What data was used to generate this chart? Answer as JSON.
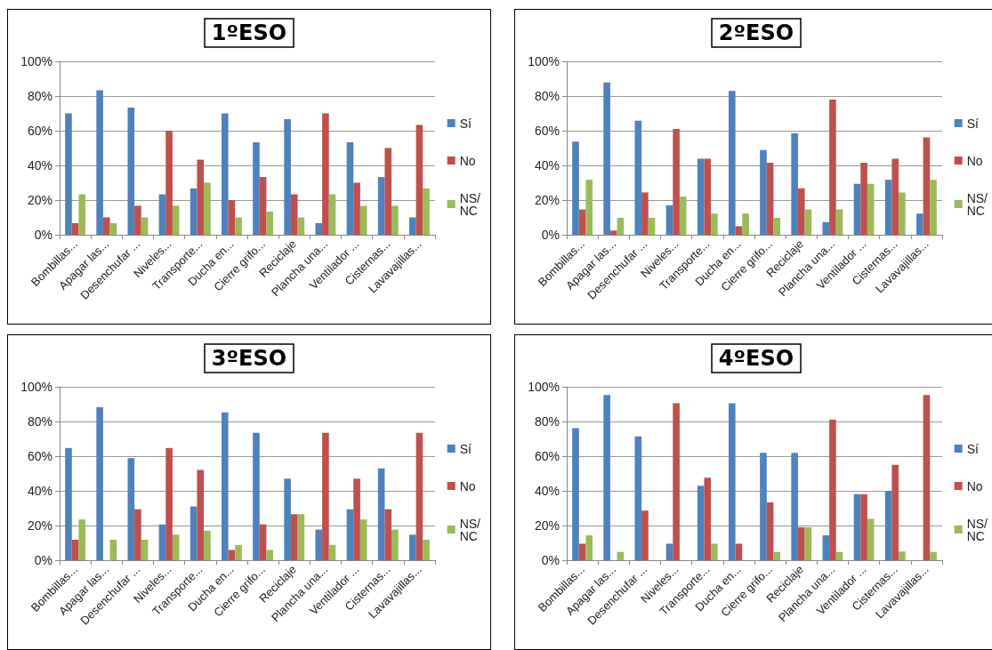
{
  "chart_data": [
    {
      "type": "bar",
      "title": "1ºESO",
      "categories": [
        "Bombillas...",
        "Apagar las...",
        "Desenchufar ...",
        "Niveles...",
        "Transporte...",
        "Ducha en...",
        "Cierre grifo...",
        "Reciclaje",
        "Plancha una...",
        "Ventilador ...",
        "Cisternas...",
        "Lavavajillas..."
      ],
      "series": [
        {
          "name": "Sí",
          "color": "#4f81bd",
          "values": [
            70,
            83.3,
            73.3,
            23.3,
            26.7,
            70,
            53.3,
            66.7,
            6.7,
            53.3,
            33.3,
            10
          ]
        },
        {
          "name": "No",
          "color": "#c0504d",
          "values": [
            6.7,
            10,
            16.7,
            60,
            43.3,
            20,
            33.3,
            23.3,
            70,
            30,
            50,
            63.3
          ]
        },
        {
          "name": "NS/NC",
          "color": "#9bbb59",
          "values": [
            23.3,
            6.7,
            10,
            16.7,
            30,
            10,
            13.3,
            10,
            23.3,
            16.7,
            16.7,
            26.7
          ]
        }
      ],
      "ylim": [
        0,
        100
      ],
      "yticks": [
        {
          "value": 0,
          "label": "0%"
        },
        {
          "value": 20,
          "label": "20%"
        },
        {
          "value": 40,
          "label": "40%"
        },
        {
          "value": 60,
          "label": "60%"
        },
        {
          "value": 80,
          "label": "80%"
        },
        {
          "value": 100,
          "label": "100%"
        }
      ],
      "grid": "y",
      "legend": "right"
    },
    {
      "type": "bar",
      "title": "2ºESO",
      "categories": [
        "Bombillas...",
        "Apagar las...",
        "Desenchufar ...",
        "Niveles...",
        "Transporte...",
        "Ducha en...",
        "Cierre grifo...",
        "Reciclaje",
        "Plancha una...",
        "Ventilador ...",
        "Cisternas...",
        "Lavavajillas..."
      ],
      "series": [
        {
          "name": "Sí",
          "color": "#4f81bd",
          "values": [
            53.7,
            87.8,
            65.8,
            17,
            43.9,
            82.9,
            48.8,
            58.5,
            7.3,
            29.3,
            31.7,
            12.2
          ]
        },
        {
          "name": "No",
          "color": "#c0504d",
          "values": [
            14.6,
            2.4,
            24.4,
            61,
            43.9,
            4.9,
            41.5,
            26.8,
            78,
            41.5,
            43.9,
            56.1
          ]
        },
        {
          "name": "NS/NC",
          "color": "#9bbb59",
          "values": [
            31.7,
            9.8,
            9.8,
            22,
            12.2,
            12.2,
            9.8,
            14.6,
            14.6,
            29.3,
            24.4,
            31.7
          ]
        }
      ],
      "ylim": [
        0,
        100
      ],
      "yticks": [
        {
          "value": 0,
          "label": "0%"
        },
        {
          "value": 20,
          "label": "20%"
        },
        {
          "value": 40,
          "label": "40%"
        },
        {
          "value": 60,
          "label": "60%"
        },
        {
          "value": 80,
          "label": "80%"
        },
        {
          "value": 100,
          "label": "100%"
        }
      ],
      "grid": "y",
      "legend": "right"
    },
    {
      "type": "bar",
      "title": "3ºESO",
      "categories": [
        "Bombillas...",
        "Apagar las...",
        "Desenchufar ...",
        "Niveles...",
        "Transporte...",
        "Ducha en...",
        "Cierre grifo...",
        "Reciclaje",
        "Plancha una...",
        "Ventilador ...",
        "Cisternas...",
        "Lavavajillas..."
      ],
      "series": [
        {
          "name": "Sí",
          "color": "#4f81bd",
          "values": [
            64.7,
            88.2,
            58.8,
            20.6,
            31,
            85.3,
            73.5,
            47,
            17.6,
            29.4,
            52.9,
            14.7
          ]
        },
        {
          "name": "No",
          "color": "#c0504d",
          "values": [
            11.8,
            0,
            29.4,
            64.7,
            52,
            5.9,
            20.6,
            26.5,
            73.5,
            47,
            29.4,
            73.5
          ]
        },
        {
          "name": "NS/NC",
          "color": "#9bbb59",
          "values": [
            23.5,
            11.8,
            11.8,
            14.7,
            17,
            8.8,
            5.9,
            26.5,
            8.8,
            23.5,
            17.6,
            11.8
          ]
        }
      ],
      "ylim": [
        0,
        100
      ],
      "yticks": [
        {
          "value": 0,
          "label": "0%"
        },
        {
          "value": 20,
          "label": "20%"
        },
        {
          "value": 40,
          "label": "40%"
        },
        {
          "value": 60,
          "label": "60%"
        },
        {
          "value": 80,
          "label": "80%"
        },
        {
          "value": 100,
          "label": "100%"
        }
      ],
      "grid": "y",
      "legend": "right"
    },
    {
      "type": "bar",
      "title": "4ºESO",
      "categories": [
        "Bombillas...",
        "Apagar las...",
        "Desenchufar ...",
        "Niveles...",
        "Transporte...",
        "Ducha en...",
        "Cierre grifo...",
        "Reciclaje",
        "Plancha una...",
        "Ventilador ...",
        "Cisternas...",
        "Lavavajillas..."
      ],
      "series": [
        {
          "name": "Sí",
          "color": "#4f81bd",
          "values": [
            76.2,
            95.2,
            71.4,
            9.5,
            42.9,
            90.5,
            61.9,
            61.9,
            14.3,
            38.1,
            40,
            0
          ]
        },
        {
          "name": "No",
          "color": "#c0504d",
          "values": [
            9.5,
            0,
            28.6,
            90.5,
            47.6,
            9.5,
            33.3,
            19,
            81,
            38.1,
            55,
            95.2
          ]
        },
        {
          "name": "NS/NC",
          "color": "#9bbb59",
          "values": [
            14.3,
            4.8,
            0,
            0,
            9.5,
            0,
            4.8,
            19,
            4.8,
            23.8,
            5,
            4.8
          ]
        }
      ],
      "ylim": [
        0,
        100
      ],
      "yticks": [
        {
          "value": 0,
          "label": "0%"
        },
        {
          "value": 20,
          "label": "20%"
        },
        {
          "value": 40,
          "label": "40%"
        },
        {
          "value": 60,
          "label": "60%"
        },
        {
          "value": 80,
          "label": "80%"
        },
        {
          "value": 100,
          "label": "100%"
        }
      ],
      "grid": "y",
      "legend": "right"
    }
  ]
}
